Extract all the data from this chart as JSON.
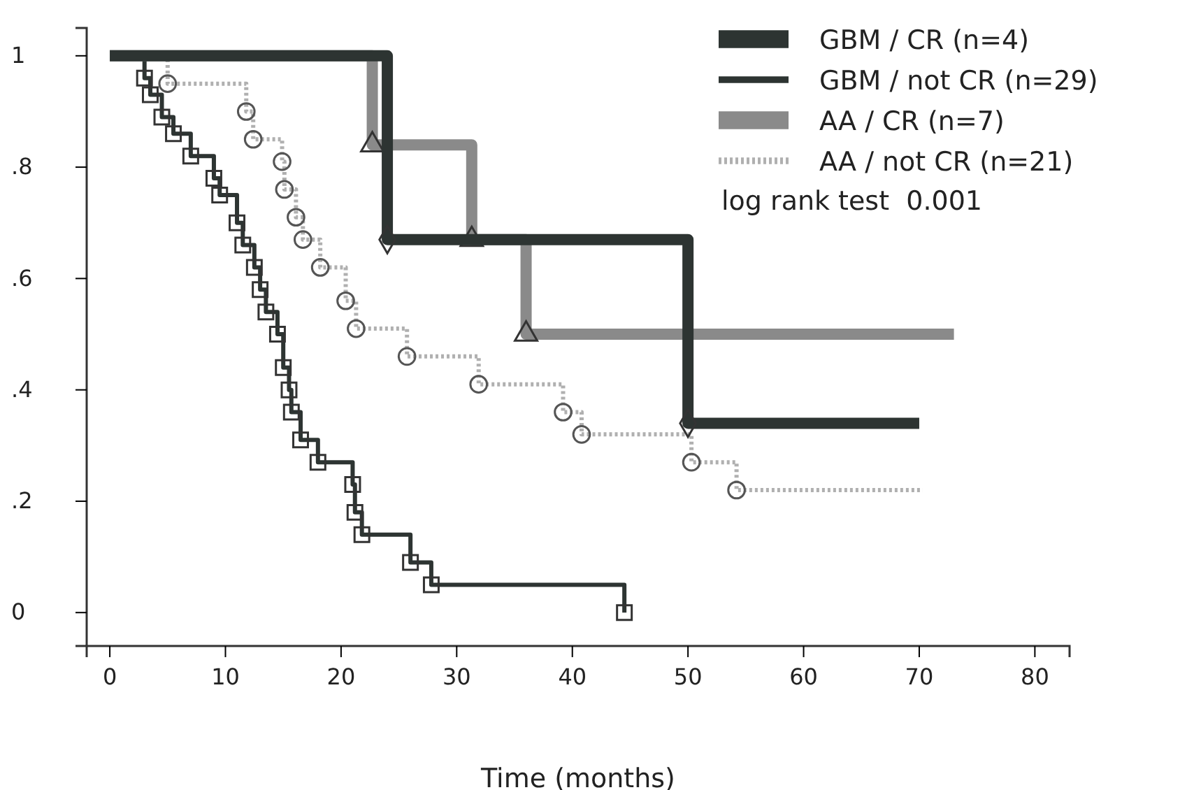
{
  "chart_data": {
    "type": "step",
    "xlabel": "Time (months)",
    "xlim": [
      -2,
      83
    ],
    "ylim": [
      -0.06,
      1.05
    ],
    "xticks": [
      0,
      10,
      20,
      30,
      40,
      50,
      60,
      70,
      80
    ],
    "yticks": [
      0,
      {
        "value": 0.2,
        "label": ".2"
      },
      {
        "value": 0.4,
        "label": ".4"
      },
      {
        "value": 0.6,
        "label": ".6"
      },
      {
        "value": 0.8,
        "label": ".8"
      },
      1
    ],
    "legend": "top right",
    "grid": false,
    "annotations": [
      "log rank test  0.001"
    ],
    "series": [
      {
        "name": "GBM / CR (n=4)",
        "color": "#2d3432",
        "marker": "diamond",
        "line_style": "solid",
        "x": [
          0,
          24,
          50,
          70
        ],
        "values": [
          1,
          0.67,
          0.34,
          0.34
        ]
      },
      {
        "name": "GBM / not CR (n=29)",
        "color": "#2d3432",
        "marker": "square",
        "line_style": "solid",
        "x": [
          0,
          3,
          3.5,
          4.5,
          5.5,
          7,
          9,
          9.5,
          11,
          11.5,
          12.5,
          13,
          13.5,
          14.5,
          15,
          15.5,
          15.7,
          16.5,
          18,
          21,
          21.2,
          21.8,
          26,
          27.8,
          44.5
        ],
        "values": [
          1,
          0.96,
          0.93,
          0.89,
          0.86,
          0.82,
          0.78,
          0.75,
          0.7,
          0.66,
          0.62,
          0.58,
          0.54,
          0.5,
          0.44,
          0.4,
          0.36,
          0.31,
          0.27,
          0.23,
          0.18,
          0.14,
          0.09,
          0.05,
          0
        ]
      },
      {
        "name": "AA / CR (n=7)",
        "color": "#8a8a8a",
        "marker": "triangle",
        "line_style": "solid",
        "x": [
          0,
          22.7,
          31.3,
          36,
          73
        ],
        "values": [
          1,
          0.84,
          0.67,
          0.5,
          0.5
        ]
      },
      {
        "name": "AA / not CR (n=21)",
        "color": "#b0b0b0",
        "marker": "circle",
        "line_style": "dotted",
        "x": [
          0,
          5,
          11.8,
          12.4,
          14.9,
          15.1,
          16.1,
          16.7,
          18.2,
          20.4,
          21.3,
          25.7,
          31.9,
          39.2,
          40.8,
          50.3,
          54.2,
          70.3
        ],
        "values": [
          1,
          0.95,
          0.9,
          0.85,
          0.81,
          0.76,
          0.71,
          0.67,
          0.62,
          0.56,
          0.51,
          0.46,
          0.41,
          0.36,
          0.32,
          0.27,
          0.22,
          0.22
        ]
      }
    ]
  }
}
